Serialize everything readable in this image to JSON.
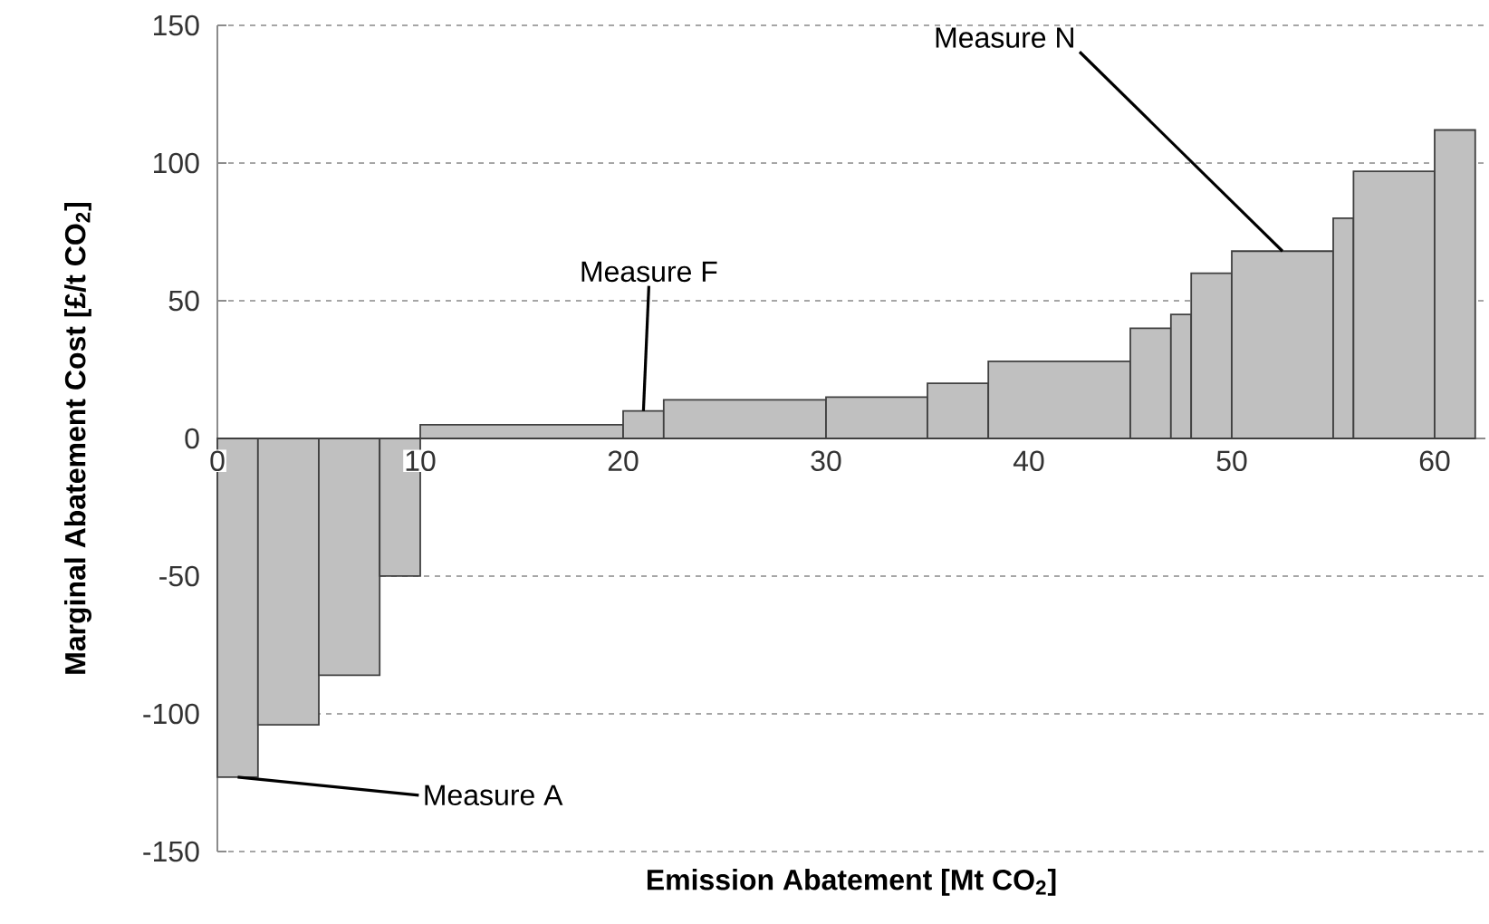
{
  "chart_data": {
    "type": "histogram",
    "xlabel": "Emission Abatement [Mt CO$_{2}$]",
    "ylabel": "Marginal Abatement Cost [£/t CO$_{2}$]",
    "bins": [
      0,
      2,
      5,
      8,
      10,
      20,
      22,
      30,
      35,
      38,
      45,
      47,
      48,
      50,
      55,
      56,
      60,
      62
    ],
    "values": [
      -123,
      -104,
      -86,
      -50,
      5,
      10,
      14,
      15,
      20,
      28,
      40,
      45,
      60,
      68,
      80,
      97,
      112
    ],
    "color": "#c0c0c0",
    "xlim": [
      0,
      62.5
    ],
    "xticks": [
      0,
      10,
      20,
      30,
      40,
      50,
      60
    ],
    "ylim": [
      -150,
      150
    ],
    "yticks": [
      -150,
      -100,
      -50,
      0,
      50,
      100,
      150
    ],
    "grid": "y",
    "annotations": [
      {
        "text": "Measure A",
        "x": 1,
        "y": -123
      },
      {
        "text": "Measure F",
        "x": 21,
        "y": 10
      },
      {
        "text": "Measure N",
        "x": 52.5,
        "y": 68
      }
    ]
  }
}
